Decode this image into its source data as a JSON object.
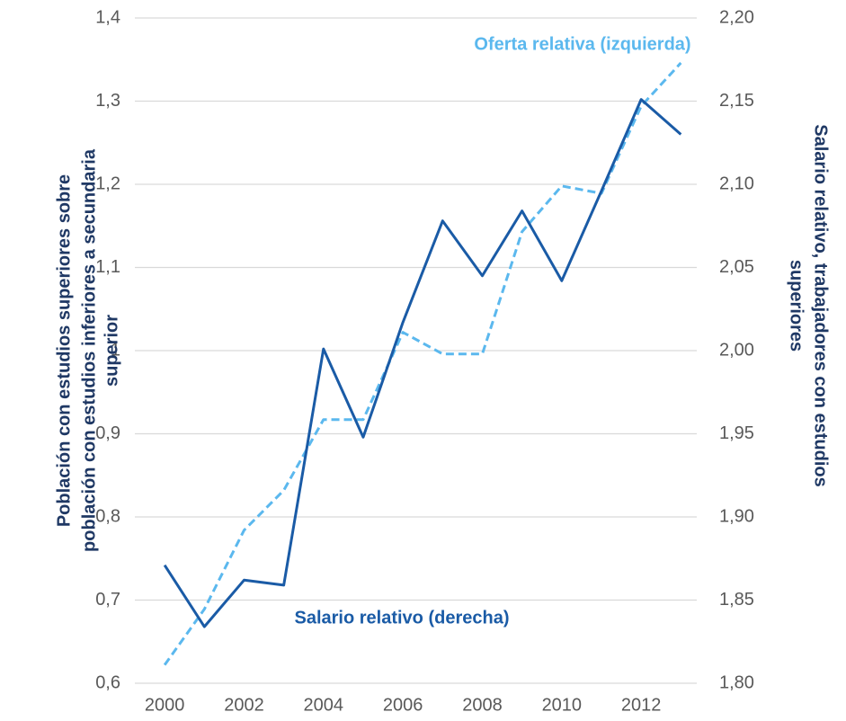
{
  "chart_data": {
    "type": "line",
    "x": [
      2000,
      2001,
      2002,
      2003,
      2004,
      2005,
      2006,
      2007,
      2008,
      2009,
      2010,
      2011,
      2012,
      2013
    ],
    "xlim": [
      1999.25,
      2013.4
    ],
    "xticks": [
      2000,
      2002,
      2004,
      2006,
      2008,
      2010,
      2012
    ],
    "ylim": [
      0.6,
      1.4
    ],
    "yticks": [
      {
        "value": 0.6,
        "label": "0,6"
      },
      {
        "value": 0.7,
        "label": "0,7"
      },
      {
        "value": 0.8,
        "label": "0,8"
      },
      {
        "value": 0.9,
        "label": "0,9"
      },
      1,
      {
        "value": 1.1,
        "label": "1,1"
      },
      {
        "value": 1.2,
        "label": "1,2"
      },
      {
        "value": 1.3,
        "label": "1,3"
      },
      {
        "value": 1.4,
        "label": "1,4"
      }
    ],
    "y2lim": [
      1.8,
      2.2
    ],
    "y2ticks": [
      {
        "value": 1.8,
        "label": "1,80"
      },
      {
        "value": 1.85,
        "label": "1,85"
      },
      {
        "value": 1.9,
        "label": "1,90"
      },
      {
        "value": 1.95,
        "label": "1,95"
      },
      {
        "value": 2.0,
        "label": "2,00"
      },
      {
        "value": 2.05,
        "label": "2,05"
      },
      {
        "value": 2.1,
        "label": "2,10"
      },
      {
        "value": 2.15,
        "label": "2,15"
      },
      {
        "value": 2.2,
        "label": "2,20"
      }
    ],
    "ylabel": [
      "Población con estudios superiores sobre",
      "población con estudios inferiores a secundaria",
      "superior"
    ],
    "y2label": [
      "Salario relativo, trabajadores con estudios",
      "superiores"
    ],
    "grid": true,
    "series": [
      {
        "name": "Oferta relativa (izquierda)",
        "color": "#5bb8ee",
        "dashed": true,
        "values": [
          0.622,
          0.689,
          0.784,
          0.832,
          0.917,
          0.917,
          1.022,
          0.996,
          0.996,
          1.143,
          1.198,
          1.189,
          1.294,
          1.346
        ]
      },
      {
        "name": "Salario relativo (derecha)",
        "color": "#1a5ba6",
        "axis": "y2",
        "values": [
          1.871,
          1.834,
          1.862,
          1.859,
          2.001,
          1.948,
          2.017,
          2.078,
          2.045,
          2.084,
          2.042,
          2.096,
          2.151,
          2.13
        ]
      }
    ]
  }
}
